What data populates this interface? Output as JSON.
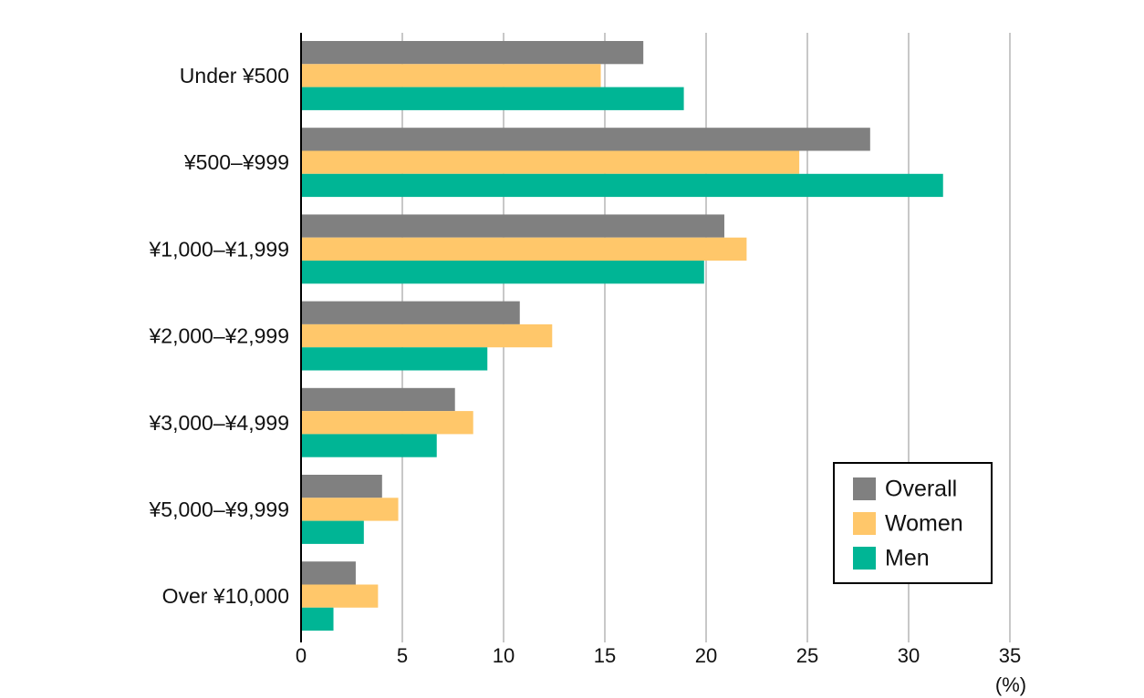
{
  "chart_data": {
    "type": "bar",
    "orientation": "horizontal",
    "categories": [
      "Under ¥500",
      "¥500–¥999",
      "¥1,000–¥1,999",
      "¥2,000–¥2,999",
      "¥3,000–¥4,999",
      "¥5,000–¥9,999",
      "Over ¥10,000"
    ],
    "series": [
      {
        "name": "Overall",
        "color": "#808080",
        "values": [
          16.9,
          28.1,
          20.9,
          10.8,
          7.6,
          4.0,
          2.7
        ]
      },
      {
        "name": "Women",
        "color": "#FFC76A",
        "values": [
          14.8,
          24.6,
          22.0,
          12.4,
          8.5,
          4.8,
          3.8
        ]
      },
      {
        "name": "Men",
        "color": "#00B595",
        "values": [
          18.9,
          31.7,
          19.9,
          9.2,
          6.7,
          3.1,
          1.6
        ]
      }
    ],
    "xlim": [
      0,
      35
    ],
    "xticks": [
      "0",
      "5",
      "10",
      "15",
      "20",
      "25",
      "30",
      "35"
    ],
    "unit": "(%)",
    "grid": true,
    "legend": "bottom-right"
  }
}
